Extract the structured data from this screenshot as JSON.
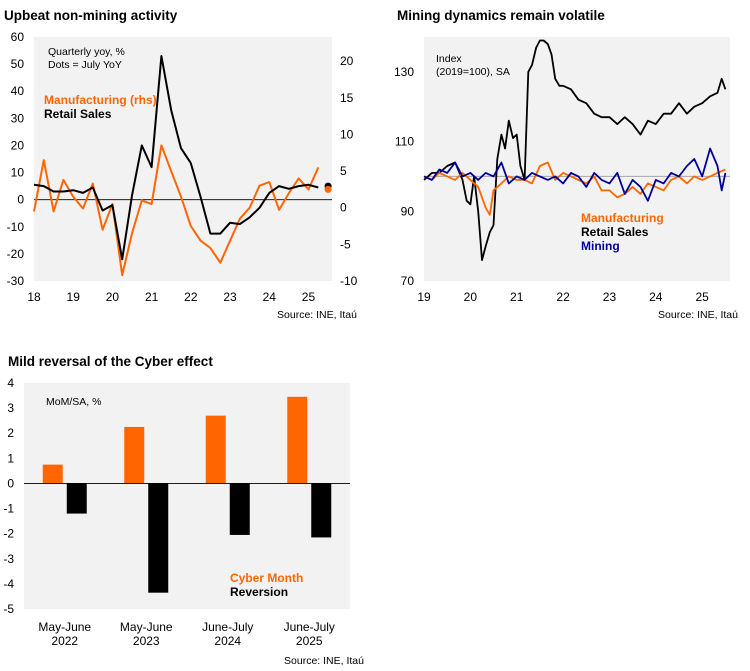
{
  "colors": {
    "orange": "#ff6600",
    "black": "#000000",
    "navy": "#000099",
    "panel": "#f2f2f2",
    "ref": "#a6a6a6"
  },
  "chart_data": [
    {
      "type": "line",
      "title": "Upbeat non-mining activity",
      "note_line1": "Quarterly yoy, %",
      "note_line2": "Dots = July YoY",
      "source": "Source: INE, Itaú",
      "x_tick_labels": [
        "18",
        "19",
        "20",
        "21",
        "22",
        "23",
        "24",
        "25"
      ],
      "x_range": [
        2018.0,
        2025.6
      ],
      "y_left_range": [
        -30,
        60
      ],
      "y_left_ticks": [
        -30,
        -20,
        -10,
        0,
        10,
        20,
        30,
        40,
        50,
        60
      ],
      "y_right_range": [
        -10,
        23.3
      ],
      "y_right_ticks": [
        -10,
        -5,
        0,
        5,
        10,
        15,
        20
      ],
      "legend": [
        "Manufacturing (rhs)",
        "Retail Sales"
      ],
      "series": [
        {
          "name": "Manufacturing (rhs)",
          "axis": "right",
          "x": [
            2018.0,
            2018.25,
            2018.5,
            2018.75,
            2019.0,
            2019.25,
            2019.5,
            2019.75,
            2020.0,
            2020.25,
            2020.5,
            2020.75,
            2021.0,
            2021.25,
            2021.5,
            2021.75,
            2022.0,
            2022.25,
            2022.5,
            2022.75,
            2023.0,
            2023.25,
            2023.5,
            2023.75,
            2024.0,
            2024.25,
            2024.5,
            2024.75,
            2025.0,
            2025.25
          ],
          "values": [
            -0.5,
            6.5,
            -0.5,
            3.8,
            1.5,
            -0.1,
            3.3,
            -3.0,
            0.5,
            -9.2,
            -3.5,
            1.0,
            0.5,
            8.5,
            5.0,
            1.5,
            -2.5,
            -4.5,
            -5.5,
            -7.5,
            -4.5,
            -1.5,
            0.0,
            3.0,
            3.5,
            -0.3,
            2.0,
            4.0,
            2.5,
            5.5
          ]
        },
        {
          "name": "Retail Sales",
          "axis": "left",
          "x": [
            2018.0,
            2018.25,
            2018.5,
            2018.75,
            2019.0,
            2019.25,
            2019.5,
            2019.75,
            2020.0,
            2020.25,
            2020.5,
            2020.75,
            2021.0,
            2021.25,
            2021.5,
            2021.75,
            2022.0,
            2022.25,
            2022.5,
            2022.75,
            2023.0,
            2023.25,
            2023.5,
            2023.75,
            2024.0,
            2024.25,
            2024.5,
            2024.75,
            2025.0,
            2025.25
          ],
          "values": [
            5.5,
            5.0,
            3.0,
            3.0,
            3.5,
            2.5,
            4.5,
            -4.0,
            -2.0,
            -22.0,
            1.5,
            20.0,
            12.0,
            53.0,
            33.0,
            19.0,
            13.5,
            1.0,
            -12.5,
            -12.5,
            -8.5,
            -9.0,
            -6.5,
            -3.0,
            2.5,
            5.0,
            4.0,
            5.0,
            5.5,
            4.5
          ]
        }
      ],
      "dots": [
        {
          "series": "Retail Sales",
          "x": 2025.5,
          "value": 5.0
        },
        {
          "series": "Manufacturing (rhs)",
          "x": 2025.5,
          "value": 2.5
        }
      ]
    },
    {
      "type": "line",
      "title": "Mining dynamics remain volatile",
      "note_line1": "Index",
      "note_line2": "(2019=100), SA",
      "source": "Source: INE, Itaú",
      "x_tick_labels": [
        "19",
        "20",
        "21",
        "22",
        "23",
        "24",
        "25"
      ],
      "x_range": [
        2019.0,
        2025.6
      ],
      "y_range": [
        70,
        140
      ],
      "y_ticks": [
        70,
        90,
        110,
        130
      ],
      "reference_line": 100,
      "legend": [
        "Manufacturing",
        "Retail Sales",
        "Mining"
      ],
      "series": [
        {
          "name": "Retail Sales",
          "x": [
            2019.0,
            2019.17,
            2019.33,
            2019.5,
            2019.67,
            2019.83,
            2019.92,
            2020.0,
            2020.08,
            2020.17,
            2020.25,
            2020.33,
            2020.42,
            2020.5,
            2020.58,
            2020.67,
            2020.75,
            2020.83,
            2020.92,
            2021.0,
            2021.08,
            2021.17,
            2021.25,
            2021.33,
            2021.42,
            2021.5,
            2021.58,
            2021.67,
            2021.75,
            2021.83,
            2021.92,
            2022.0,
            2022.17,
            2022.33,
            2022.5,
            2022.67,
            2022.83,
            2023.0,
            2023.17,
            2023.33,
            2023.5,
            2023.67,
            2023.83,
            2024.0,
            2024.17,
            2024.33,
            2024.5,
            2024.67,
            2024.83,
            2025.0,
            2025.17,
            2025.33,
            2025.42,
            2025.5
          ],
          "values": [
            99,
            101,
            101,
            103,
            104,
            99,
            93,
            92,
            100,
            90,
            76,
            80,
            84,
            86,
            105,
            112,
            108,
            116,
            111,
            112,
            103,
            99,
            130,
            132,
            137,
            139,
            139,
            138,
            135,
            128,
            126,
            126,
            125,
            122,
            121,
            118,
            117,
            117,
            115,
            117,
            115,
            112,
            116,
            115,
            118,
            118,
            121,
            118,
            120,
            121,
            123,
            124,
            128,
            125
          ]
        },
        {
          "name": "Manufacturing",
          "x": [
            2019.0,
            2019.17,
            2019.33,
            2019.5,
            2019.67,
            2019.83,
            2020.0,
            2020.17,
            2020.33,
            2020.42,
            2020.5,
            2020.67,
            2020.83,
            2021.0,
            2021.17,
            2021.33,
            2021.5,
            2021.67,
            2021.83,
            2022.0,
            2022.17,
            2022.33,
            2022.5,
            2022.67,
            2022.83,
            2023.0,
            2023.17,
            2023.33,
            2023.5,
            2023.67,
            2023.83,
            2024.0,
            2024.17,
            2024.33,
            2024.5,
            2024.67,
            2024.83,
            2025.0,
            2025.17,
            2025.33,
            2025.5
          ],
          "values": [
            100,
            99,
            101,
            100,
            99,
            101,
            99,
            97,
            91,
            89,
            96,
            98,
            100,
            99,
            99,
            98,
            103,
            104,
            99,
            101,
            100,
            99,
            98,
            100,
            96,
            96,
            94,
            95,
            97,
            95,
            98,
            97,
            96,
            99,
            100,
            98,
            100,
            99,
            100,
            101,
            102
          ]
        },
        {
          "name": "Mining",
          "x": [
            2019.0,
            2019.17,
            2019.33,
            2019.5,
            2019.67,
            2019.83,
            2020.0,
            2020.17,
            2020.33,
            2020.5,
            2020.67,
            2020.83,
            2021.0,
            2021.17,
            2021.33,
            2021.5,
            2021.67,
            2021.83,
            2022.0,
            2022.17,
            2022.33,
            2022.5,
            2022.67,
            2022.83,
            2023.0,
            2023.17,
            2023.33,
            2023.5,
            2023.67,
            2023.83,
            2024.0,
            2024.17,
            2024.33,
            2024.5,
            2024.67,
            2024.83,
            2025.0,
            2025.17,
            2025.33,
            2025.42,
            2025.5
          ],
          "values": [
            100,
            99,
            102,
            101,
            104,
            100,
            101,
            99,
            101,
            100,
            104,
            98,
            100,
            99,
            101,
            100,
            99,
            100,
            98,
            101,
            100,
            97,
            101,
            99,
            98,
            101,
            95,
            99,
            97,
            93,
            99,
            98,
            101,
            100,
            103,
            105,
            100,
            108,
            103,
            96,
            101
          ]
        }
      ]
    },
    {
      "type": "bar",
      "title": "Mild reversal of the Cyber effect",
      "note": "MoM/SA, %",
      "source": "Source: INE, Itaú",
      "categories": [
        "May-June\n2022",
        "May-June\n2023",
        "June-July\n2024",
        "June-July\n2025"
      ],
      "y_range": [
        -5,
        4
      ],
      "y_ticks": [
        -5,
        -4,
        -3,
        -2,
        -1,
        0,
        1,
        2,
        3,
        4
      ],
      "legend": [
        "Cyber Month",
        "Reversion"
      ],
      "series": [
        {
          "name": "Cyber Month",
          "values": [
            0.75,
            2.25,
            2.7,
            3.45
          ]
        },
        {
          "name": "Reversion",
          "values": [
            -1.2,
            -4.35,
            -2.05,
            -2.15
          ]
        }
      ]
    }
  ]
}
